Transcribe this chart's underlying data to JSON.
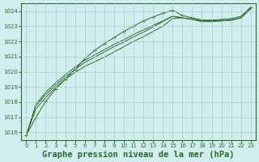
{
  "background_color": "#d0eeee",
  "grid_color": "#b0cccc",
  "line_color": "#2d6a2d",
  "title": "Graphe pression niveau de la mer (hPa)",
  "xlabel_fontsize": 7.5,
  "ylim": [
    1015.5,
    1024.5
  ],
  "yticks": [
    1016,
    1017,
    1018,
    1019,
    1020,
    1021,
    1022,
    1023,
    1024
  ],
  "xlim": [
    -0.5,
    23.5
  ],
  "xticks": [
    0,
    1,
    2,
    3,
    4,
    5,
    6,
    7,
    8,
    9,
    10,
    11,
    12,
    13,
    14,
    15,
    16,
    17,
    18,
    19,
    20,
    21,
    22,
    23
  ],
  "series_with_markers": [
    [
      1015.8,
      1017.0,
      1018.05,
      1018.85,
      1019.5,
      1020.15,
      1020.85,
      1021.4,
      1021.85,
      1022.25,
      1022.65,
      1023.0,
      1023.35,
      1023.6,
      1023.85,
      1024.05,
      1023.7,
      1023.55,
      1023.4,
      1023.4,
      1023.45,
      1023.5,
      1023.65,
      1024.25
    ]
  ],
  "series_plain": [
    [
      1015.8,
      1017.55,
      1018.3,
      1018.95,
      1019.5,
      1019.95,
      1020.35,
      1020.65,
      1020.95,
      1021.3,
      1021.65,
      1022.0,
      1022.3,
      1022.65,
      1023.0,
      1023.5,
      1023.55,
      1023.45,
      1023.35,
      1023.35,
      1023.35,
      1023.4,
      1023.55,
      1024.15
    ],
    [
      1015.8,
      1017.75,
      1018.5,
      1019.1,
      1019.65,
      1020.15,
      1020.6,
      1020.95,
      1021.3,
      1021.65,
      1021.95,
      1022.3,
      1022.6,
      1022.95,
      1023.3,
      1023.65,
      1023.55,
      1023.45,
      1023.35,
      1023.35,
      1023.35,
      1023.4,
      1023.55,
      1024.2
    ],
    [
      1015.8,
      1017.85,
      1018.65,
      1019.25,
      1019.8,
      1020.3,
      1020.75,
      1021.1,
      1021.45,
      1021.8,
      1022.1,
      1022.45,
      1022.75,
      1023.05,
      1023.35,
      1023.65,
      1023.55,
      1023.45,
      1023.3,
      1023.3,
      1023.35,
      1023.4,
      1023.55,
      1024.2
    ]
  ]
}
